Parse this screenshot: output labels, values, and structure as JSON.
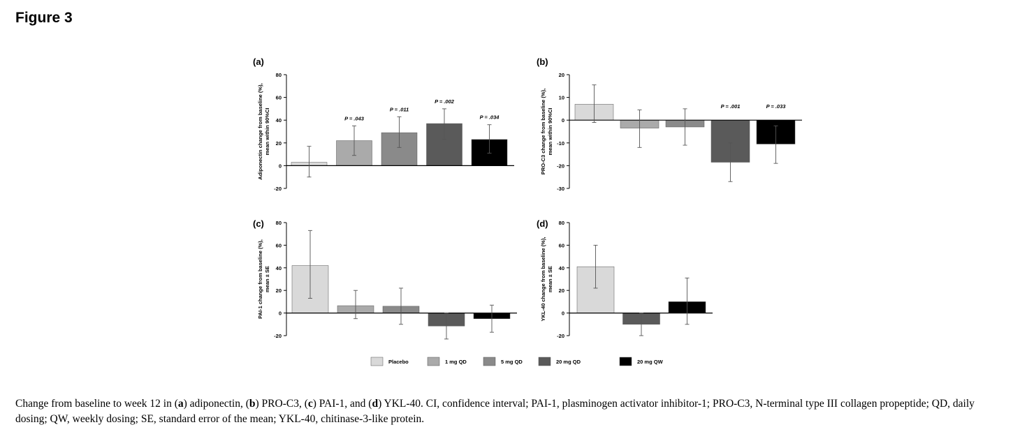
{
  "figure_title": "Figure 3",
  "colors": {
    "Placebo": "#d9d9d9",
    "1 mg QD": "#aaaaaa",
    "5 mg QD": "#8a8a8a",
    "20 mg QD": "#5a5a5a",
    "20 mg QW": "#000000"
  },
  "legend": [
    "Placebo",
    "1 mg QD",
    "5 mg QD",
    "20 mg QD",
    "20 mg QW"
  ],
  "chart_data": [
    {
      "panel": "(a)",
      "type": "bar",
      "ylabel_lines": [
        "Adiponectin change from baseline (%),",
        "mean within 90%CI"
      ],
      "ylim": [
        -20,
        80
      ],
      "yticks": [
        -20,
        0,
        20,
        40,
        60,
        80
      ],
      "categories": [
        "Placebo",
        "1 mg QD",
        "5 mg QD",
        "20 mg QD",
        "20 mg QW"
      ],
      "values": [
        3,
        22,
        29,
        37,
        23
      ],
      "err_low": [
        -10,
        9,
        16,
        23,
        11
      ],
      "err_high": [
        17,
        35,
        43,
        50,
        36
      ],
      "annotations": [
        "",
        "P = .043",
        "P = .011",
        "P = .002",
        "P = .034"
      ]
    },
    {
      "panel": "(b)",
      "type": "bar",
      "ylabel_lines": [
        "PRO-C3 change from baseline (%),",
        "mean within 90%CI"
      ],
      "ylim": [
        -30,
        20
      ],
      "yticks": [
        -30,
        -20,
        -10,
        0,
        10,
        20
      ],
      "categories": [
        "Placebo",
        "1 mg QD",
        "5 mg QD",
        "20 mg QD",
        "20 mg QW"
      ],
      "values": [
        7,
        -3.5,
        -3,
        -18.5,
        -10.5
      ],
      "err_low": [
        -1,
        -12,
        -11,
        -27,
        -19
      ],
      "err_high": [
        15.5,
        4.5,
        5,
        -10,
        -2.5
      ],
      "annotations": [
        "",
        "",
        "",
        "P = .001",
        "P = .033"
      ]
    },
    {
      "panel": "(c)",
      "type": "bar",
      "ylabel_lines": [
        "PAI-1 change from baseline (%),",
        "mean ± SE"
      ],
      "ylim": [
        -20,
        80
      ],
      "yticks": [
        -20,
        0,
        20,
        40,
        60,
        80
      ],
      "categories": [
        "Placebo",
        "1 mg QD",
        "5 mg QD",
        "20 mg QD",
        "20 mg QW"
      ],
      "values": [
        42,
        6.5,
        6,
        -11.5,
        -5
      ],
      "err_low": [
        13,
        -5,
        -10,
        -23,
        -17
      ],
      "err_high": [
        73,
        20,
        22,
        0,
        7
      ],
      "annotations": [
        "",
        "",
        "",
        "",
        ""
      ]
    },
    {
      "panel": "(d)",
      "type": "bar",
      "ylabel_lines": [
        "YKL-40 change from baseline (%),",
        "mean ± SE"
      ],
      "ylim": [
        -20,
        80
      ],
      "yticks": [
        -20,
        0,
        20,
        40,
        60,
        80
      ],
      "categories": [
        "Placebo",
        "20 mg QD",
        "20 mg QW"
      ],
      "values": [
        41,
        -10,
        10
      ],
      "err_low": [
        22,
        -20,
        -10
      ],
      "err_high": [
        60,
        0,
        31
      ],
      "annotations": [
        "",
        "",
        ""
      ]
    }
  ],
  "caption": {
    "segments": [
      {
        "t": "Change from baseline to week 12 in (",
        "b": false
      },
      {
        "t": "a",
        "b": true
      },
      {
        "t": ") adiponectin, (",
        "b": false
      },
      {
        "t": "b",
        "b": true
      },
      {
        "t": ") PRO-C3, (",
        "b": false
      },
      {
        "t": "c",
        "b": true
      },
      {
        "t": ") PAI-1, and (",
        "b": false
      },
      {
        "t": "d",
        "b": true
      },
      {
        "t": ") YKL-40. CI, confidence interval; PAI-1, plasminogen activator inhibitor-1; PRO-C3, N-terminal type III collagen propeptide; QD, daily dosing; QW, weekly dosing; SE, standard error of the mean; YKL-40, chitinase-3-like protein.",
        "b": false
      }
    ]
  }
}
